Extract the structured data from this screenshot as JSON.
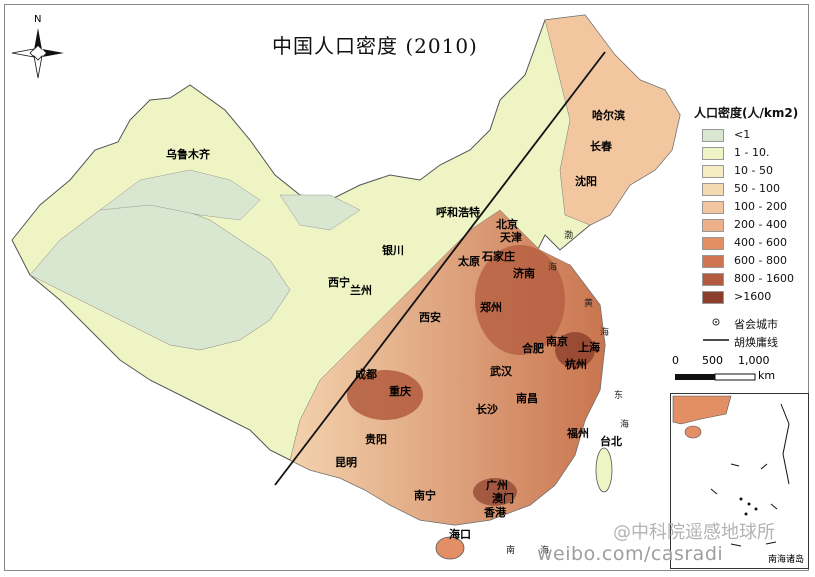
{
  "title": "中国人口密度 (2010)",
  "north_label": "N",
  "legend": {
    "title": "人口密度(人/km2)",
    "items": [
      {
        "label": "<1",
        "color": "#d9e7d0"
      },
      {
        "label": "1 - 10.",
        "color": "#eef4c4"
      },
      {
        "label": "10 - 50",
        "color": "#f6ecc4"
      },
      {
        "label": "50 - 100",
        "color": "#f5d9b0"
      },
      {
        "label": "100 - 200",
        "color": "#f2c7a0"
      },
      {
        "label": "200 - 400",
        "color": "#eeb08a"
      },
      {
        "label": "400 - 600",
        "color": "#e28f66"
      },
      {
        "label": "600 - 800",
        "color": "#cf7552"
      },
      {
        "label": "800 - 1600",
        "color": "#b35b3e"
      },
      {
        "label": ">1600",
        "color": "#8c3e2c"
      }
    ],
    "capital_label": "省会城市",
    "line_label": "胡焕庸线"
  },
  "scale": {
    "ticks": [
      "0",
      "500",
      "1,000"
    ],
    "unit": "km"
  },
  "cities": [
    "哈尔滨",
    "长春",
    "沈阳",
    "乌鲁木齐",
    "呼和浩特",
    "北京",
    "天津",
    "银川",
    "太原",
    "石家庄",
    "济南",
    "西宁",
    "兰州",
    "郑州",
    "西安",
    "南京",
    "合肥",
    "上海",
    "杭州",
    "成都",
    "武汉",
    "重庆",
    "南昌",
    "长沙",
    "福州",
    "台北",
    "贵阳",
    "昆明",
    "广州",
    "南宁",
    "澳门",
    "香港",
    "海口"
  ],
  "seas": [
    "渤",
    "海",
    "黄",
    "海",
    "东",
    "海",
    "南",
    "海"
  ],
  "inset_label": "南海诸岛",
  "watermark": {
    "handle": "@中科院遥感地球所",
    "url": "weibo.com/casradi"
  }
}
